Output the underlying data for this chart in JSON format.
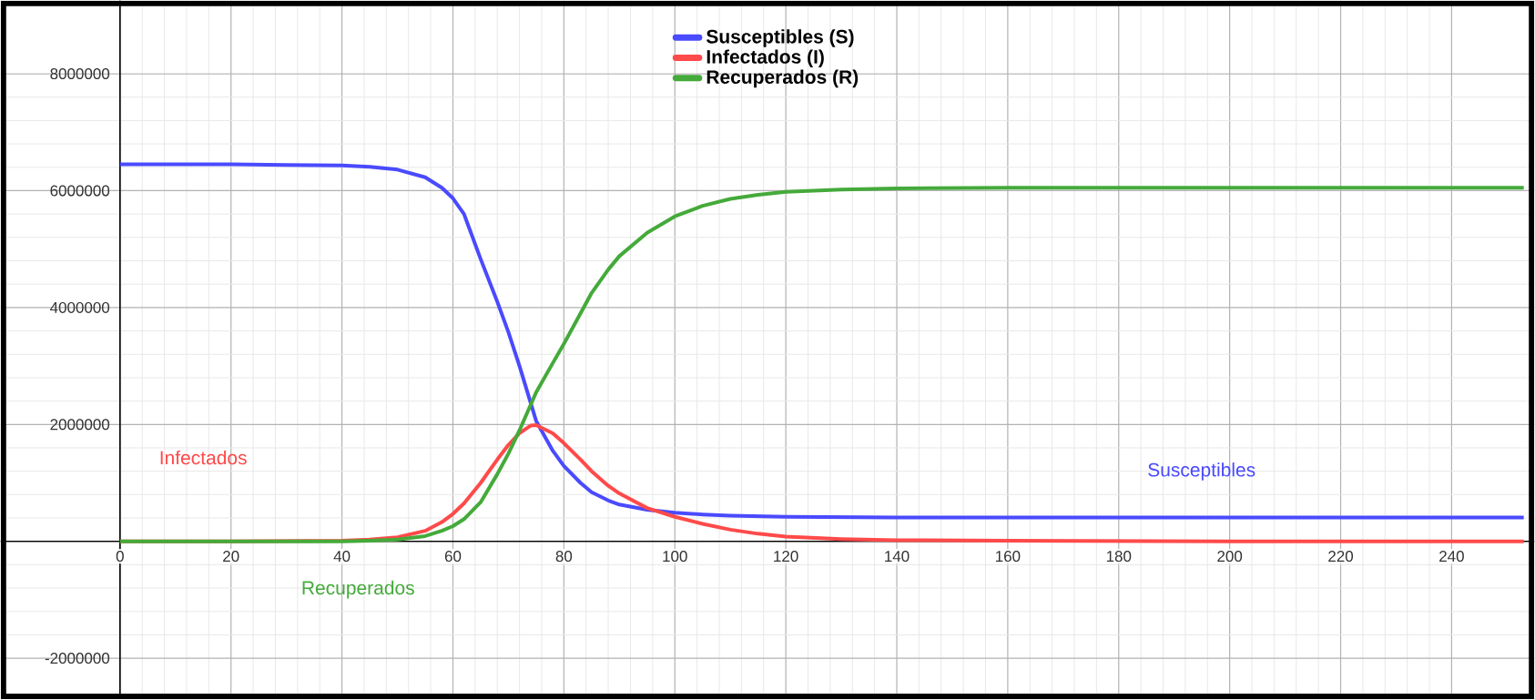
{
  "chart_data": {
    "type": "line",
    "series": [
      {
        "name": "Susceptibles (S)",
        "color": "#4a4aff",
        "x": [
          0,
          10,
          20,
          30,
          40,
          45,
          50,
          55,
          58,
          60,
          62,
          65,
          68,
          70,
          72,
          75,
          78,
          80,
          83,
          85,
          88,
          90,
          95,
          100,
          105,
          110,
          120,
          140,
          160,
          200,
          253
        ],
        "values": [
          6450000,
          6450000,
          6450000,
          6440000,
          6430000,
          6410000,
          6360000,
          6230000,
          6050000,
          5870000,
          5600000,
          4830000,
          4100000,
          3580000,
          3000000,
          2060000,
          1550000,
          1290000,
          1000000,
          840000,
          700000,
          630000,
          540000,
          490000,
          460000,
          440000,
          420000,
          410000,
          410000,
          410000,
          410000
        ]
      },
      {
        "name": "Infectados (I)",
        "color": "#ff4a4a",
        "x": [
          0,
          20,
          40,
          45,
          50,
          55,
          58,
          60,
          62,
          65,
          68,
          70,
          72,
          74,
          75,
          78,
          80,
          83,
          85,
          88,
          90,
          95,
          100,
          105,
          110,
          115,
          120,
          130,
          140,
          160,
          200,
          253
        ],
        "values": [
          0,
          0,
          10000,
          30000,
          70000,
          180000,
          330000,
          470000,
          650000,
          1000000,
          1400000,
          1650000,
          1850000,
          1980000,
          1990000,
          1850000,
          1680000,
          1400000,
          1200000,
          950000,
          820000,
          570000,
          420000,
          300000,
          200000,
          130000,
          80000,
          40000,
          20000,
          10000,
          0,
          0
        ]
      },
      {
        "name": "Recuperados (R)",
        "color": "#44aa3a",
        "x": [
          0,
          20,
          40,
          45,
          50,
          55,
          58,
          60,
          62,
          65,
          68,
          70,
          72,
          75,
          78,
          80,
          83,
          85,
          88,
          90,
          95,
          100,
          105,
          110,
          115,
          120,
          130,
          140,
          160,
          200,
          253
        ],
        "values": [
          0,
          0,
          0,
          10000,
          30000,
          90000,
          180000,
          260000,
          380000,
          670000,
          1150000,
          1500000,
          1900000,
          2550000,
          3050000,
          3380000,
          3900000,
          4250000,
          4650000,
          4880000,
          5280000,
          5560000,
          5740000,
          5860000,
          5930000,
          5980000,
          6020000,
          6040000,
          6050000,
          6050000,
          6050000
        ]
      }
    ],
    "annotations": [
      "Susceptibles",
      "Infectados",
      "Recuperados"
    ],
    "xlim": [
      -21.5,
      254.9
    ],
    "ylim": [
      -2700000,
      9250000
    ],
    "xticks": [
      0,
      20,
      40,
      60,
      80,
      100,
      120,
      140,
      160,
      180,
      200,
      220,
      240
    ],
    "yticks": [
      -2000000,
      {
        "value": 0,
        "label": null
      },
      2000000,
      4000000,
      6000000,
      8000000
    ],
    "grid": true,
    "legend": "top"
  }
}
